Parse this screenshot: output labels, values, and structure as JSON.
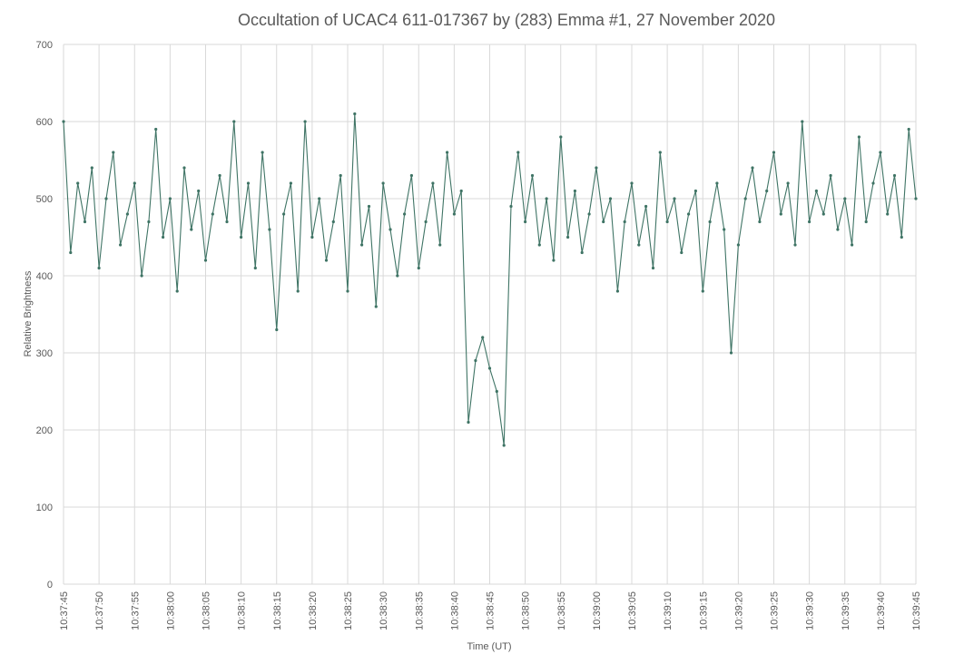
{
  "chart_data": {
    "type": "line",
    "title": "Occultation of UCAC4 611-017367 by (283) Emma #1, 27 November 2020",
    "xlabel": "Time (UT)",
    "ylabel": "Relative Brightness",
    "ylim": [
      0,
      700
    ],
    "yticks": [
      0,
      100,
      200,
      300,
      400,
      500,
      600,
      700
    ],
    "xlim": [
      "10:37:45",
      "10:39:45"
    ],
    "xticks": [
      "10:37:45",
      "10:37:50",
      "10:37:55",
      "10:38:00",
      "10:38:05",
      "10:38:10",
      "10:38:15",
      "10:38:20",
      "10:38:25",
      "10:38:30",
      "10:38:35",
      "10:38:40",
      "10:38:45",
      "10:38:50",
      "10:38:55",
      "10:39:00",
      "10:39:05",
      "10:39:10",
      "10:39:15",
      "10:39:20",
      "10:39:25",
      "10:39:30",
      "10:39:35",
      "10:39:40",
      "10:39:45"
    ],
    "grid": true,
    "markers": true,
    "color": "#3f7465",
    "series": [
      {
        "x": [
          "10:37:45",
          "10:37:46",
          "10:37:47",
          "10:37:48",
          "10:37:49",
          "10:37:50",
          "10:37:51",
          "10:37:52",
          "10:37:53",
          "10:37:54",
          "10:37:55",
          "10:37:56",
          "10:37:57",
          "10:37:58",
          "10:37:59",
          "10:38:00",
          "10:38:01",
          "10:38:02",
          "10:38:03",
          "10:38:04",
          "10:38:05",
          "10:38:06",
          "10:38:07",
          "10:38:08",
          "10:38:09",
          "10:38:10",
          "10:38:11",
          "10:38:12",
          "10:38:13",
          "10:38:14",
          "10:38:15",
          "10:38:16",
          "10:38:17",
          "10:38:18",
          "10:38:19",
          "10:38:20",
          "10:38:21",
          "10:38:22",
          "10:38:23",
          "10:38:24",
          "10:38:25",
          "10:38:26",
          "10:38:27",
          "10:38:28",
          "10:38:29",
          "10:38:30",
          "10:38:31",
          "10:38:32",
          "10:38:33",
          "10:38:34",
          "10:38:35",
          "10:38:36",
          "10:38:37",
          "10:38:38",
          "10:38:39",
          "10:38:40",
          "10:38:41",
          "10:38:42",
          "10:38:43",
          "10:38:44",
          "10:38:45",
          "10:38:46",
          "10:38:47",
          "10:38:48",
          "10:38:49",
          "10:38:50",
          "10:38:51",
          "10:38:52",
          "10:38:53",
          "10:38:54",
          "10:38:55",
          "10:38:56",
          "10:38:57",
          "10:38:58",
          "10:38:59",
          "10:39:00",
          "10:39:01",
          "10:39:02",
          "10:39:03",
          "10:39:04",
          "10:39:05",
          "10:39:06",
          "10:39:07",
          "10:39:08",
          "10:39:09",
          "10:39:10",
          "10:39:11",
          "10:39:12",
          "10:39:13",
          "10:39:14",
          "10:39:15",
          "10:39:16",
          "10:39:17",
          "10:39:18",
          "10:39:19",
          "10:39:20",
          "10:39:21",
          "10:39:22",
          "10:39:23",
          "10:39:24",
          "10:39:25",
          "10:39:26",
          "10:39:27",
          "10:39:28",
          "10:39:29",
          "10:39:30",
          "10:39:31",
          "10:39:32",
          "10:39:33",
          "10:39:34",
          "10:39:35",
          "10:39:36",
          "10:39:37",
          "10:39:38",
          "10:39:39",
          "10:39:40",
          "10:39:41",
          "10:39:42",
          "10:39:43",
          "10:39:44",
          "10:39:45"
        ],
        "values": [
          600,
          430,
          520,
          470,
          540,
          410,
          500,
          560,
          440,
          480,
          520,
          400,
          470,
          590,
          450,
          500,
          380,
          540,
          460,
          510,
          420,
          480,
          530,
          470,
          600,
          450,
          520,
          410,
          560,
          460,
          330,
          480,
          520,
          380,
          600,
          450,
          500,
          420,
          470,
          530,
          380,
          610,
          440,
          490,
          360,
          520,
          460,
          400,
          480,
          530,
          410,
          470,
          520,
          440,
          560,
          480,
          510,
          210,
          290,
          320,
          280,
          250,
          180,
          490,
          560,
          470,
          530,
          440,
          500,
          420,
          580,
          450,
          510,
          430,
          480,
          540,
          470,
          500,
          380,
          470,
          520,
          440,
          490,
          410,
          560,
          470,
          500,
          430,
          480,
          510,
          380,
          470,
          520,
          460,
          300,
          440,
          500,
          540,
          470,
          510,
          560,
          480,
          520,
          440,
          600,
          470,
          510,
          480,
          530,
          460,
          500,
          440,
          580,
          470,
          520,
          560,
          480,
          530,
          450,
          590,
          500
        ]
      }
    ]
  }
}
